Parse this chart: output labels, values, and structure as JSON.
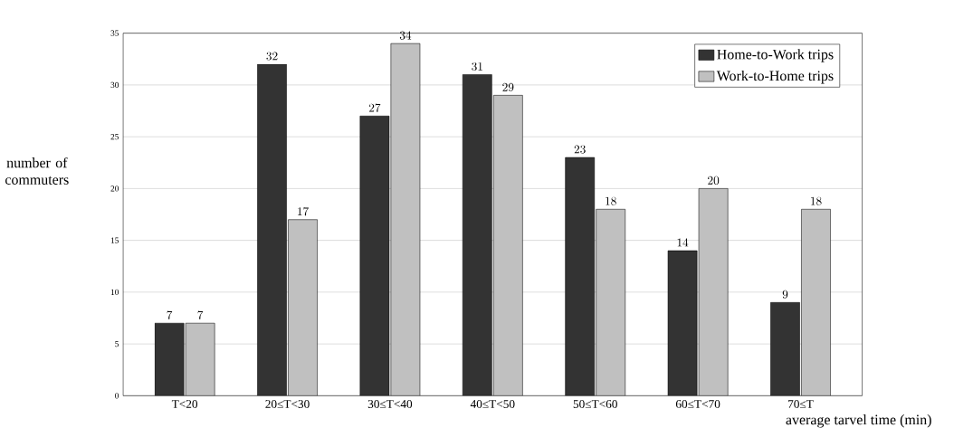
{
  "chart_data": {
    "type": "bar",
    "xlabel": "average tarvel time (min)",
    "ylabel": "number of commuters",
    "categories": [
      "T<20",
      "20≤T<30",
      "30≤T<40",
      "40≤T<50",
      "50≤T<60",
      "60≤T<70",
      "70≤T"
    ],
    "series": [
      {
        "name": "Home-to-Work trips",
        "color": "#333333",
        "values": [
          7,
          32,
          27,
          31,
          23,
          14,
          9
        ]
      },
      {
        "name": "Work-to-Home trips",
        "color": "#c0c0c0",
        "values": [
          7,
          17,
          34,
          29,
          18,
          20,
          18
        ]
      }
    ],
    "ylim": [
      0,
      35
    ],
    "yticks": [
      0,
      5,
      10,
      15,
      20,
      25,
      30,
      35
    ],
    "grid": "y",
    "legend": "top right",
    "data_labels": true
  }
}
